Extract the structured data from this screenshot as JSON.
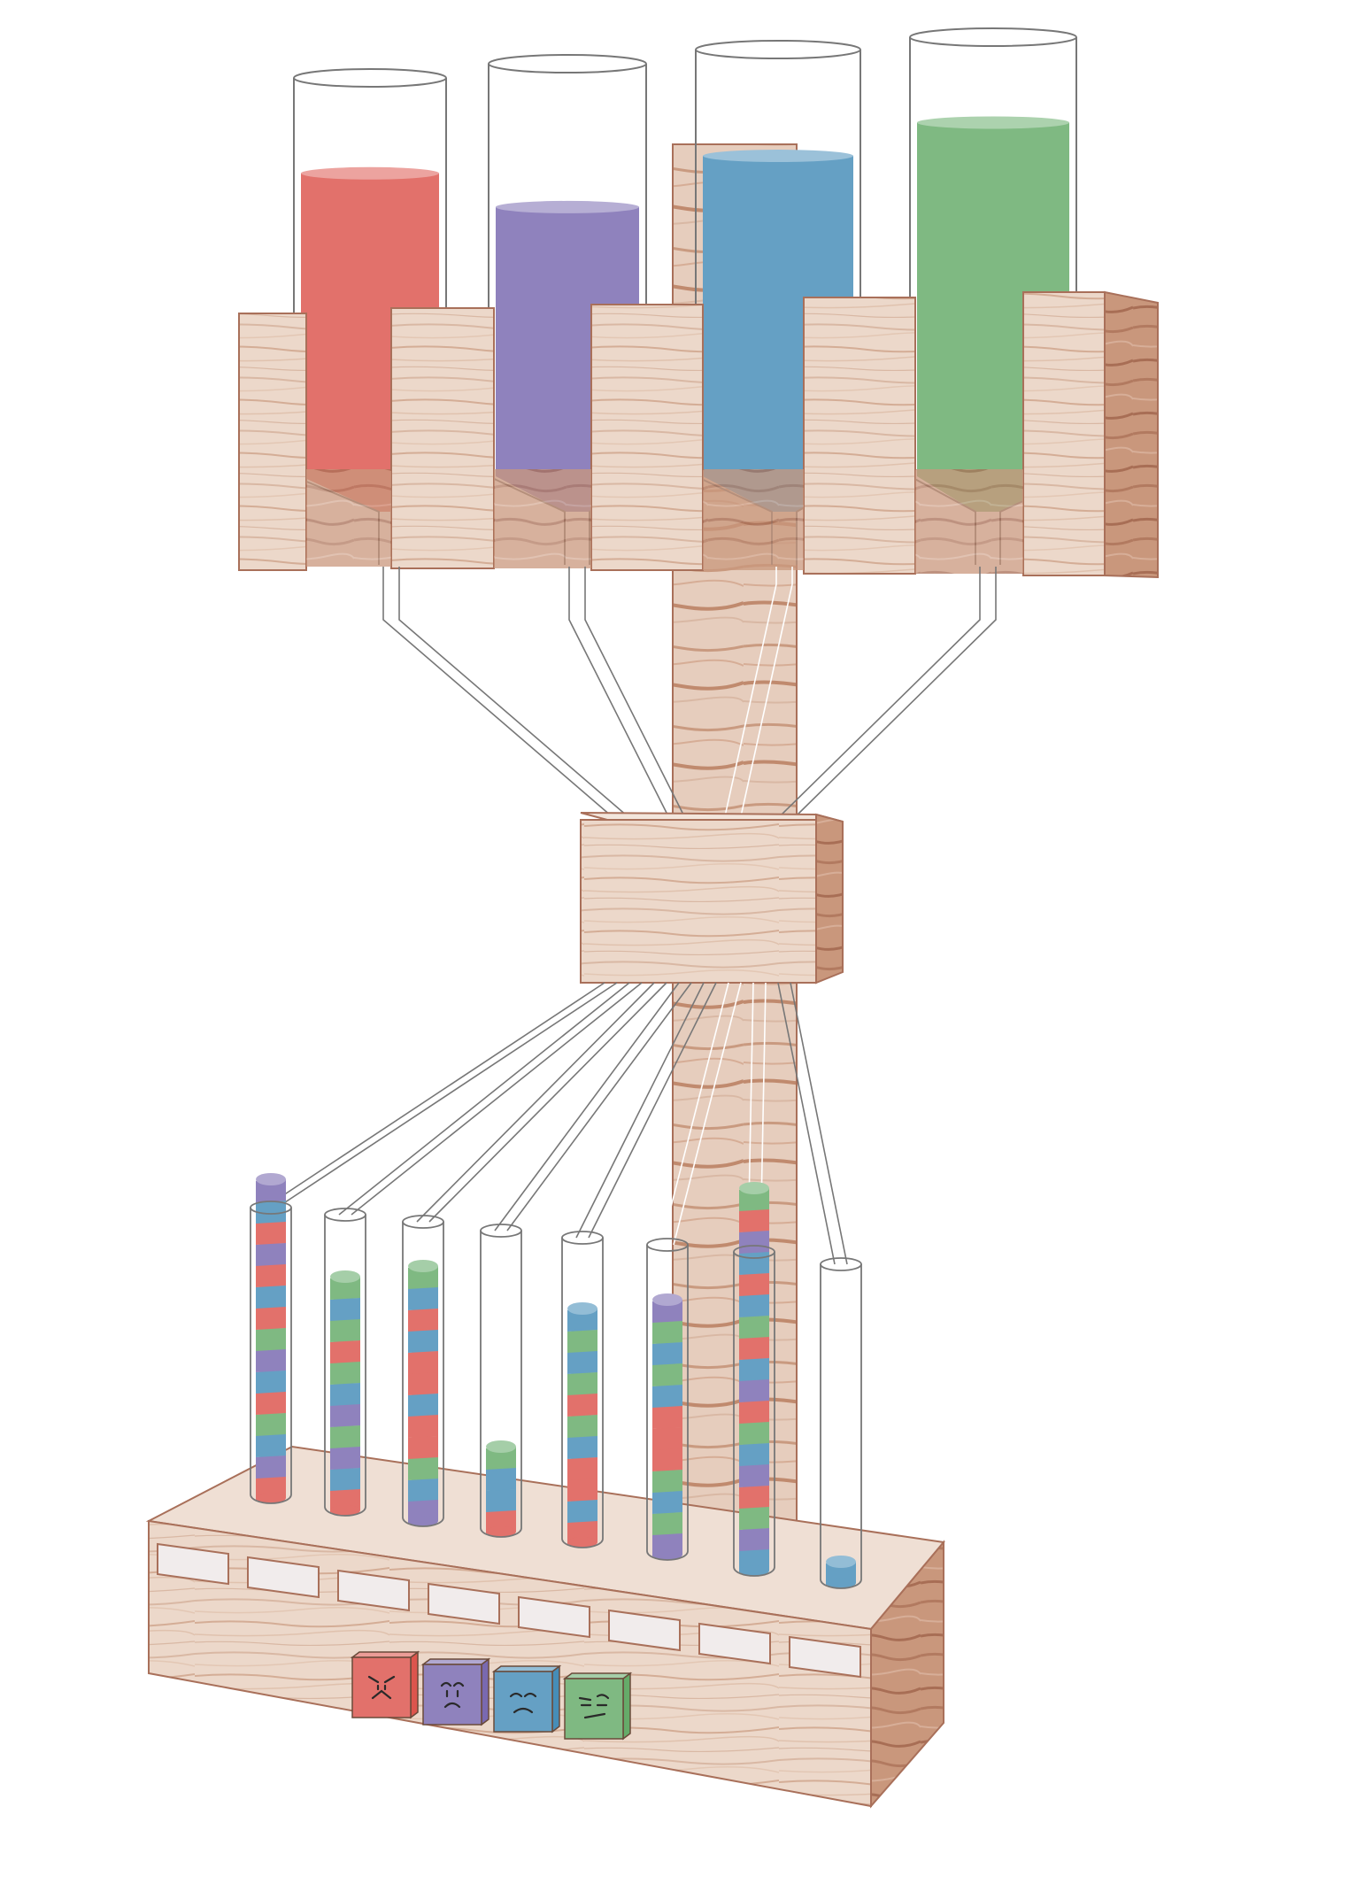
{
  "colors": {
    "red": "#e2716b",
    "purple": "#8f82bd",
    "blue": "#65a0c4",
    "green": "#7fb982",
    "wood_front": "#ecd8ca",
    "wood_side": "#c9977c",
    "wood_grain": "#c58c6e",
    "wood_edge": "#a9705a",
    "glass": "#777777",
    "label_slot": "#f1ecec"
  },
  "reservoirs": [
    {
      "color": "red",
      "level": 0.78
    },
    {
      "color": "purple",
      "level": 0.68
    },
    {
      "color": "blue",
      "level": 0.77
    },
    {
      "color": "green",
      "level": 0.82
    }
  ],
  "tubes": [
    {
      "stripes": [
        "red",
        "purple",
        "blue",
        "green",
        "red",
        "blue",
        "purple",
        "green",
        "red",
        "blue",
        "red",
        "purple",
        "red",
        "blue",
        "purple"
      ],
      "top": "purple"
    },
    {
      "stripes": [
        "red",
        "blue",
        "purple",
        "green",
        "purple",
        "blue",
        "green",
        "red",
        "green",
        "blue",
        "green"
      ],
      "top": "green"
    },
    {
      "stripes": [
        "purple",
        "blue",
        "green",
        "red",
        "red",
        "blue",
        "red",
        "red",
        "blue",
        "red",
        "blue",
        "green"
      ],
      "top": "green"
    },
    {
      "stripes": [
        "red",
        "blue",
        "blue",
        "green"
      ],
      "top": "green"
    },
    {
      "stripes": [
        "red",
        "blue",
        "red",
        "red",
        "blue",
        "green",
        "red",
        "green",
        "blue",
        "green",
        "blue"
      ],
      "top": "blue"
    },
    {
      "stripes": [
        "purple",
        "green",
        "blue",
        "green",
        "red",
        "red",
        "red",
        "blue",
        "green",
        "blue",
        "green",
        "purple"
      ],
      "top": "purple"
    },
    {
      "stripes": [
        "blue",
        "purple",
        "green",
        "red",
        "purple",
        "blue",
        "green",
        "red",
        "purple",
        "blue",
        "red",
        "green",
        "blue",
        "red",
        "blue",
        "purple",
        "red",
        "green"
      ],
      "top": "green"
    },
    {
      "stripes": [
        "blue"
      ],
      "top": "blue"
    }
  ],
  "label_slots": [
    "",
    "",
    "",
    "",
    "",
    "",
    "",
    ""
  ],
  "faces": [
    {
      "color": "red",
      "icon": "angry-face-icon"
    },
    {
      "color": "purple",
      "icon": "worried-face-icon"
    },
    {
      "color": "blue",
      "icon": "sad-face-icon"
    },
    {
      "color": "green",
      "icon": "skeptical-face-icon"
    }
  ]
}
